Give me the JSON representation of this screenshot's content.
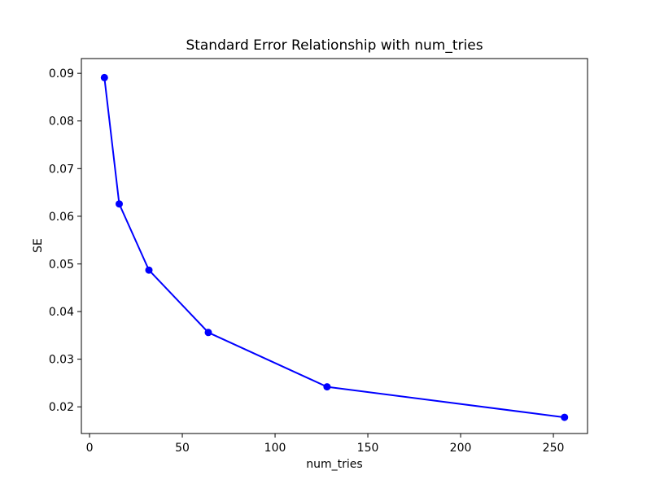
{
  "figure": {
    "background_color": "#ffffff",
    "text_color": "#000000"
  },
  "chart_data": {
    "type": "line",
    "title": "Standard Error Relationship with num_tries",
    "xlabel": "num_tries",
    "ylabel": "SE",
    "x": [
      8,
      16,
      32,
      64,
      128,
      256
    ],
    "y": [
      0.0891,
      0.0626,
      0.0487,
      0.0356,
      0.0242,
      0.0178
    ],
    "series_name": "SE",
    "xticks": [
      0,
      50,
      100,
      150,
      200,
      250
    ],
    "yticks": [
      0.02,
      0.03,
      0.04,
      0.05,
      0.06,
      0.07,
      0.08,
      0.09
    ],
    "ytick_decimals": 2,
    "xlim": [
      -4.4,
      268.4
    ],
    "ylim": [
      0.0144,
      0.0931
    ],
    "line_color": "#0000ff",
    "marker": "o",
    "marker_radius": 4.5,
    "line_width": 2,
    "spine_color": "#000000",
    "grid": false,
    "legend": null
  }
}
